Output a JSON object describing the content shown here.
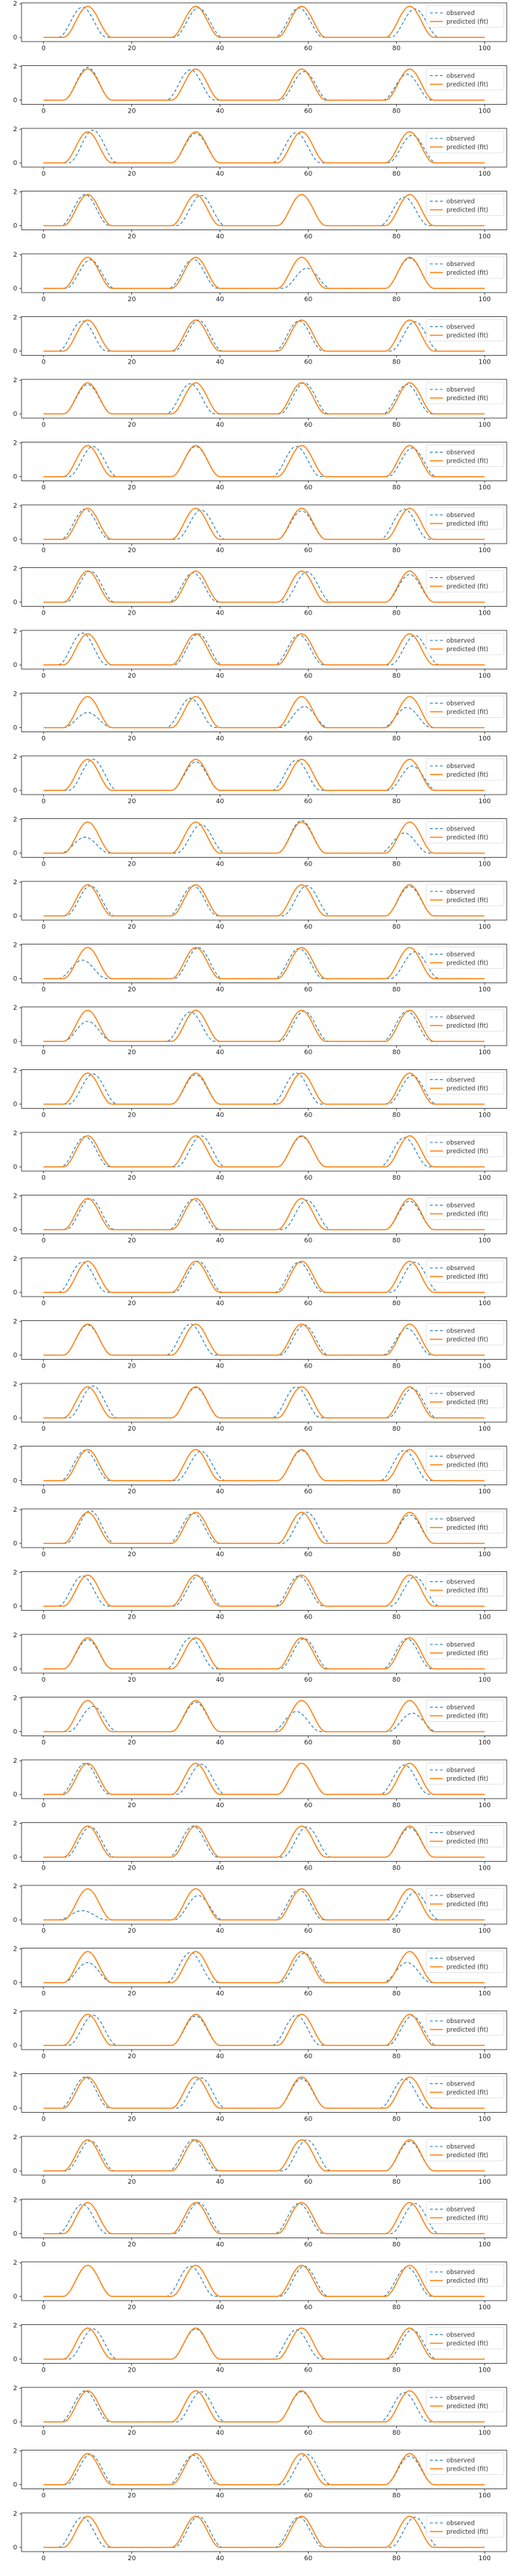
{
  "figure": {
    "panel_count": 41,
    "colors": {
      "observed": "#1f77b4",
      "predicted": "#ff7f0e",
      "axis": "#222222"
    }
  },
  "chart_data": {
    "type": "line",
    "layout": "41 stacked line plots sharing the same axes",
    "xlim": [
      -5,
      105
    ],
    "ylim": [
      -0.25,
      2.05
    ],
    "xticks": [
      0,
      20,
      40,
      60,
      80,
      100
    ],
    "yticks": [
      0,
      2
    ],
    "grid": false,
    "legend_placement": "top-right",
    "series": [
      {
        "name": "observed",
        "style": "dashed",
        "color": "#1f77b4"
      },
      {
        "name": "predicted (fit)",
        "style": "solid",
        "color": "#ff7f0e"
      }
    ],
    "predicted_pulse": {
      "description": "the fitted curve is zero except for four identical bell-shaped pulses",
      "centers": [
        10,
        34.5,
        58.5,
        83
      ],
      "half_width": 5.5,
      "peak": 1.85
    },
    "observed_peaks_by_panel": [
      [
        1.8,
        1.75,
        1.75,
        1.7
      ],
      [
        1.95,
        1.8,
        1.7,
        1.55
      ],
      [
        1.95,
        1.75,
        1.8,
        1.65
      ],
      [
        1.85,
        1.8,
        1.85,
        1.7
      ],
      [
        1.7,
        1.75,
        1.2,
        1.8
      ],
      [
        1.8,
        1.85,
        1.8,
        1.75
      ],
      [
        1.75,
        1.8,
        1.85,
        1.75
      ],
      [
        1.8,
        1.8,
        1.8,
        1.7
      ],
      [
        1.8,
        1.75,
        1.7,
        1.8
      ],
      [
        1.85,
        1.75,
        1.8,
        1.65
      ],
      [
        1.9,
        1.85,
        1.8,
        1.75
      ],
      [
        0.9,
        1.75,
        1.25,
        1.2
      ],
      [
        1.85,
        1.7,
        1.8,
        1.45
      ],
      [
        0.95,
        1.7,
        1.95,
        1.2
      ],
      [
        1.8,
        1.8,
        1.8,
        1.75
      ],
      [
        1.1,
        1.85,
        1.8,
        1.6
      ],
      [
        1.2,
        1.75,
        1.8,
        1.8
      ],
      [
        1.8,
        1.75,
        1.85,
        1.7
      ],
      [
        1.8,
        1.85,
        1.8,
        1.75
      ],
      [
        1.85,
        1.8,
        1.75,
        1.7
      ],
      [
        1.8,
        1.85,
        1.8,
        1.8
      ],
      [
        1.8,
        1.85,
        1.8,
        1.6
      ],
      [
        1.9,
        1.8,
        1.85,
        1.75
      ],
      [
        1.8,
        1.75,
        1.8,
        1.8
      ],
      [
        1.95,
        1.8,
        1.85,
        1.7
      ],
      [
        1.8,
        1.8,
        1.8,
        1.75
      ],
      [
        1.75,
        1.85,
        1.8,
        1.8
      ],
      [
        1.5,
        1.75,
        1.2,
        1.1
      ],
      [
        1.85,
        1.8,
        1.85,
        1.75
      ],
      [
        1.8,
        1.85,
        1.8,
        1.75
      ],
      [
        0.55,
        1.45,
        1.8,
        1.65
      ],
      [
        1.2,
        1.8,
        1.75,
        1.2
      ],
      [
        1.8,
        1.75,
        1.8,
        1.75
      ],
      [
        1.85,
        1.8,
        1.75,
        1.75
      ],
      [
        1.8,
        1.85,
        1.85,
        1.75
      ],
      [
        1.75,
        1.85,
        1.8,
        1.8
      ],
      [
        1.85,
        1.8,
        1.8,
        1.75
      ],
      [
        1.8,
        1.8,
        1.75,
        1.75
      ],
      [
        1.85,
        1.8,
        1.8,
        1.75
      ],
      [
        1.8,
        1.75,
        1.8,
        1.7
      ],
      [
        1.8,
        1.85,
        1.8,
        1.8
      ]
    ]
  }
}
